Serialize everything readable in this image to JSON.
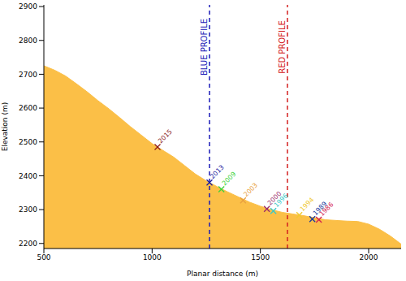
{
  "chart_data": {
    "type": "area",
    "x_label": "Planar distance (m)",
    "y_label": "Elevation (m)",
    "color": "#fbbf47",
    "x": [
      500,
      550,
      600,
      650,
      700,
      750,
      800,
      850,
      900,
      950,
      1000,
      1050,
      1100,
      1150,
      1200,
      1250,
      1300,
      1350,
      1400,
      1450,
      1500,
      1550,
      1600,
      1650,
      1700,
      1750,
      1800,
      1850,
      1900,
      1950,
      2000,
      2050,
      2100,
      2150
    ],
    "values": [
      2725,
      2712,
      2695,
      2672,
      2648,
      2622,
      2598,
      2572,
      2545,
      2520,
      2495,
      2475,
      2455,
      2430,
      2405,
      2385,
      2368,
      2352,
      2337,
      2322,
      2310,
      2300,
      2292,
      2287,
      2282,
      2276,
      2270,
      2268,
      2266,
      2265,
      2257,
      2242,
      2222,
      2198
    ],
    "xlim": [
      500,
      2150
    ],
    "ylim": [
      2185,
      2905
    ],
    "xticks": [
      500,
      1000,
      1500,
      2000
    ],
    "yticks": [
      2200,
      2300,
      2400,
      2500,
      2600,
      2700,
      2800,
      2900
    ],
    "reference_lines": [
      {
        "x": 1265,
        "label": "BLUE PROFILE",
        "color": "#1a1ab8"
      },
      {
        "x": 1625,
        "label": "RED PROFILE",
        "color": "#d42020"
      }
    ],
    "markers": [
      {
        "label": "2015",
        "x": 1025,
        "y": 2485,
        "color": "#8b1a1a"
      },
      {
        "label": "2013",
        "x": 1265,
        "y": 2380,
        "color": "#1a1a9e"
      },
      {
        "label": "2009",
        "x": 1320,
        "y": 2360,
        "color": "#3cd23c"
      },
      {
        "label": "2003",
        "x": 1420,
        "y": 2327,
        "color": "#e8a040"
      },
      {
        "label": "2000",
        "x": 1530,
        "y": 2302,
        "color": "#9a2a6a"
      },
      {
        "label": "1996",
        "x": 1560,
        "y": 2296,
        "color": "#3cc8c8"
      },
      {
        "label": "1994",
        "x": 1680,
        "y": 2284,
        "color": "#f0c830"
      },
      {
        "label": "1989",
        "x": 1740,
        "y": 2272,
        "color": "#1a3a9e"
      },
      {
        "label": "1986",
        "x": 1770,
        "y": 2270,
        "color": "#d42050"
      }
    ],
    "marker": "x",
    "grid": false
  }
}
